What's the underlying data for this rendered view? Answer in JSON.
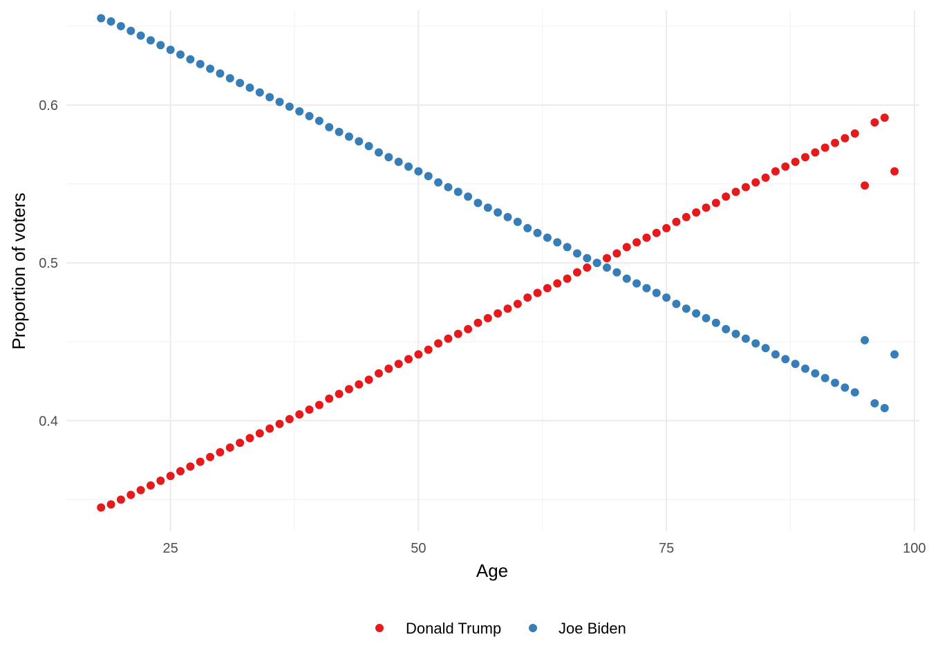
{
  "chart_data": {
    "type": "scatter",
    "title": "",
    "xlabel": "Age",
    "ylabel": "Proportion of voters",
    "xlim": [
      14.5,
      100.5
    ],
    "ylim": [
      0.33,
      0.66
    ],
    "x_ticks": [
      25,
      50,
      75,
      100
    ],
    "y_ticks": [
      0.4,
      0.5,
      0.6
    ],
    "x_tick_labels": [
      "25",
      "50",
      "75",
      "100"
    ],
    "y_tick_labels": [
      "0.4",
      "0.5",
      "0.6"
    ],
    "grid": true,
    "legend_position": "bottom",
    "series": [
      {
        "name": "Donald Trump",
        "color": "#e41a1c",
        "points": [
          [
            18,
            0.345
          ],
          [
            19,
            0.347
          ],
          [
            20,
            0.35
          ],
          [
            21,
            0.353
          ],
          [
            22,
            0.356
          ],
          [
            23,
            0.359
          ],
          [
            24,
            0.362
          ],
          [
            25,
            0.365
          ],
          [
            26,
            0.368
          ],
          [
            27,
            0.371
          ],
          [
            28,
            0.374
          ],
          [
            29,
            0.377
          ],
          [
            30,
            0.38
          ],
          [
            31,
            0.383
          ],
          [
            32,
            0.386
          ],
          [
            33,
            0.389
          ],
          [
            34,
            0.392
          ],
          [
            35,
            0.395
          ],
          [
            36,
            0.398
          ],
          [
            37,
            0.401
          ],
          [
            38,
            0.404
          ],
          [
            39,
            0.407
          ],
          [
            40,
            0.41
          ],
          [
            41,
            0.414
          ],
          [
            42,
            0.417
          ],
          [
            43,
            0.42
          ],
          [
            44,
            0.423
          ],
          [
            45,
            0.426
          ],
          [
            46,
            0.43
          ],
          [
            47,
            0.433
          ],
          [
            48,
            0.436
          ],
          [
            49,
            0.439
          ],
          [
            50,
            0.442
          ],
          [
            51,
            0.445
          ],
          [
            52,
            0.449
          ],
          [
            53,
            0.452
          ],
          [
            54,
            0.455
          ],
          [
            55,
            0.458
          ],
          [
            56,
            0.462
          ],
          [
            57,
            0.465
          ],
          [
            58,
            0.468
          ],
          [
            59,
            0.471
          ],
          [
            60,
            0.474
          ],
          [
            61,
            0.478
          ],
          [
            62,
            0.481
          ],
          [
            63,
            0.484
          ],
          [
            64,
            0.487
          ],
          [
            65,
            0.49
          ],
          [
            66,
            0.494
          ],
          [
            67,
            0.497
          ],
          [
            68,
            0.5
          ],
          [
            69,
            0.503
          ],
          [
            70,
            0.506
          ],
          [
            71,
            0.51
          ],
          [
            72,
            0.513
          ],
          [
            73,
            0.516
          ],
          [
            74,
            0.519
          ],
          [
            75,
            0.522
          ],
          [
            76,
            0.526
          ],
          [
            77,
            0.529
          ],
          [
            78,
            0.532
          ],
          [
            79,
            0.535
          ],
          [
            80,
            0.538
          ],
          [
            81,
            0.542
          ],
          [
            82,
            0.545
          ],
          [
            83,
            0.548
          ],
          [
            84,
            0.551
          ],
          [
            85,
            0.554
          ],
          [
            86,
            0.558
          ],
          [
            87,
            0.561
          ],
          [
            88,
            0.564
          ],
          [
            89,
            0.567
          ],
          [
            90,
            0.57
          ],
          [
            91,
            0.573
          ],
          [
            92,
            0.576
          ],
          [
            93,
            0.579
          ],
          [
            94,
            0.582
          ],
          [
            95,
            0.549
          ],
          [
            96,
            0.589
          ],
          [
            97,
            0.592
          ],
          [
            98,
            0.558
          ]
        ]
      },
      {
        "name": "Joe Biden",
        "color": "#377eb8",
        "points": [
          [
            18,
            0.655
          ],
          [
            19,
            0.653
          ],
          [
            20,
            0.65
          ],
          [
            21,
            0.647
          ],
          [
            22,
            0.644
          ],
          [
            23,
            0.641
          ],
          [
            24,
            0.638
          ],
          [
            25,
            0.635
          ],
          [
            26,
            0.632
          ],
          [
            27,
            0.629
          ],
          [
            28,
            0.626
          ],
          [
            29,
            0.623
          ],
          [
            30,
            0.62
          ],
          [
            31,
            0.617
          ],
          [
            32,
            0.614
          ],
          [
            33,
            0.611
          ],
          [
            34,
            0.608
          ],
          [
            35,
            0.605
          ],
          [
            36,
            0.602
          ],
          [
            37,
            0.599
          ],
          [
            38,
            0.596
          ],
          [
            39,
            0.593
          ],
          [
            40,
            0.59
          ],
          [
            41,
            0.586
          ],
          [
            42,
            0.583
          ],
          [
            43,
            0.58
          ],
          [
            44,
            0.577
          ],
          [
            45,
            0.574
          ],
          [
            46,
            0.57
          ],
          [
            47,
            0.567
          ],
          [
            48,
            0.564
          ],
          [
            49,
            0.561
          ],
          [
            50,
            0.558
          ],
          [
            51,
            0.555
          ],
          [
            52,
            0.551
          ],
          [
            53,
            0.548
          ],
          [
            54,
            0.545
          ],
          [
            55,
            0.542
          ],
          [
            56,
            0.538
          ],
          [
            57,
            0.535
          ],
          [
            58,
            0.532
          ],
          [
            59,
            0.529
          ],
          [
            60,
            0.526
          ],
          [
            61,
            0.522
          ],
          [
            62,
            0.519
          ],
          [
            63,
            0.516
          ],
          [
            64,
            0.513
          ],
          [
            65,
            0.51
          ],
          [
            66,
            0.506
          ],
          [
            67,
            0.503
          ],
          [
            68,
            0.5
          ],
          [
            69,
            0.497
          ],
          [
            70,
            0.494
          ],
          [
            71,
            0.49
          ],
          [
            72,
            0.487
          ],
          [
            73,
            0.484
          ],
          [
            74,
            0.481
          ],
          [
            75,
            0.478
          ],
          [
            76,
            0.474
          ],
          [
            77,
            0.471
          ],
          [
            78,
            0.468
          ],
          [
            79,
            0.465
          ],
          [
            80,
            0.462
          ],
          [
            81,
            0.458
          ],
          [
            82,
            0.455
          ],
          [
            83,
            0.452
          ],
          [
            84,
            0.449
          ],
          [
            85,
            0.446
          ],
          [
            86,
            0.442
          ],
          [
            87,
            0.439
          ],
          [
            88,
            0.436
          ],
          [
            89,
            0.433
          ],
          [
            90,
            0.43
          ],
          [
            91,
            0.427
          ],
          [
            92,
            0.424
          ],
          [
            93,
            0.421
          ],
          [
            94,
            0.418
          ],
          [
            95,
            0.451
          ],
          [
            96,
            0.411
          ],
          [
            97,
            0.408
          ],
          [
            98,
            0.442
          ]
        ]
      }
    ]
  }
}
